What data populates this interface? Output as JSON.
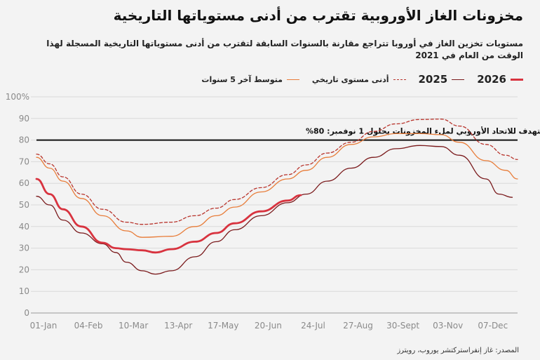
{
  "title": "مخزونات الغاز الأوروبية تقترب من أدنى مستوياتها التاريخية",
  "subtitle": "مستويات تخزين الغاز في أوروبا تتراجع مقارنة بالسنوات السابقة لتقترب من أدنى مستوياتها التاريخية المسجلة لهذا الوقت من العام في 2021",
  "source": "المصدر: غاز إنفراستركتشر يوروب، رويترز",
  "colors": {
    "s2026": "#d8333f",
    "s2025": "#7a1a1c",
    "s5yr": "#e87d3a",
    "sLow": "#b8342c",
    "target": "#111111",
    "grid": "#d9d9d9"
  },
  "legend": [
    {
      "key": "s2026",
      "label": "2026",
      "style": "solid-thick",
      "big": true
    },
    {
      "key": "s2025",
      "label": "2025",
      "style": "solid",
      "big": true
    },
    {
      "key": "sLow",
      "label": "أدنى مستوى تاريخي",
      "style": "dashed",
      "big": false
    },
    {
      "key": "s5yr",
      "label": "متوسط آخر 5 سنوات",
      "style": "solid",
      "big": false
    }
  ],
  "chart_data": {
    "type": "line",
    "ylim": [
      0,
      100
    ],
    "xlim_days": [
      0,
      364
    ],
    "y_ticks": [
      0,
      10,
      20,
      30,
      40,
      50,
      60,
      70,
      80,
      90,
      100
    ],
    "y_tick_labels": [
      "0",
      "10",
      "20",
      "30",
      "40",
      "50",
      "60",
      "70",
      "80",
      "90",
      "100%"
    ],
    "x_ticks": [
      {
        "label": "01-Jan",
        "day": 0
      },
      {
        "label": "04-Feb",
        "day": 34
      },
      {
        "label": "10-Mar",
        "day": 68
      },
      {
        "label": "13-Apr",
        "day": 102
      },
      {
        "label": "17-May",
        "day": 136
      },
      {
        "label": "20-Jun",
        "day": 170
      },
      {
        "label": "24-Jul",
        "day": 204
      },
      {
        "label": "27-Aug",
        "day": 238
      },
      {
        "label": "30-Sept",
        "day": 272
      },
      {
        "label": "03-Nov",
        "day": 306
      },
      {
        "label": "07-Dec",
        "day": 340
      }
    ],
    "target": {
      "value": 80,
      "label": "المستوى المستهدف للاتحاد الأوروبي لملء المخزونات بحلول 1 نوفمبر: 80%"
    },
    "series": [
      {
        "name": "أدنى مستوى تاريخي",
        "key": "sLow",
        "style": "dashed",
        "x": [
          0,
          10,
          20,
          34,
          50,
          68,
          80,
          102,
          120,
          136,
          150,
          170,
          190,
          204,
          220,
          238,
          255,
          272,
          290,
          306,
          320,
          340,
          355,
          364
        ],
        "y": [
          73.5,
          69,
          63,
          55,
          48,
          42,
          41,
          42,
          45,
          48.5,
          52.5,
          58,
          64,
          68.5,
          74,
          79,
          84,
          87.5,
          89.5,
          89.7,
          86.5,
          78,
          73,
          71
        ]
      },
      {
        "name": "متوسط آخر 5 سنوات",
        "key": "s5yr",
        "style": "solid",
        "x": [
          0,
          10,
          20,
          34,
          50,
          68,
          80,
          102,
          120,
          136,
          150,
          170,
          190,
          204,
          220,
          238,
          255,
          272,
          290,
          306,
          320,
          340,
          355,
          364
        ],
        "y": [
          72,
          67,
          61,
          53,
          45,
          38,
          35,
          35.5,
          40,
          45,
          49,
          56,
          62,
          66,
          72,
          78,
          81.5,
          83,
          83,
          82.5,
          79,
          70.5,
          66,
          62
        ]
      },
      {
        "name": "2025",
        "key": "s2025",
        "style": "solid",
        "x": [
          0,
          10,
          20,
          34,
          50,
          60,
          68,
          80,
          90,
          102,
          120,
          136,
          150,
          170,
          190,
          204,
          220,
          238,
          255,
          272,
          290,
          306,
          320,
          340,
          350,
          360
        ],
        "y": [
          54,
          50,
          43,
          37,
          32,
          28,
          23.5,
          19.5,
          18,
          19.5,
          26,
          33,
          38.5,
          45,
          51,
          55,
          61,
          67,
          72,
          76,
          77.5,
          77,
          73,
          62,
          55,
          53.5
        ]
      },
      {
        "name": "2026",
        "key": "s2026",
        "style": "solid-thick",
        "x": [
          0,
          10,
          20,
          34,
          50,
          60,
          68,
          80,
          90,
          102,
          120,
          136,
          150,
          170,
          190,
          200
        ],
        "y": [
          62,
          55,
          48,
          40,
          32.5,
          30,
          29.5,
          29,
          28,
          29.5,
          33,
          37,
          41.5,
          47,
          52,
          54.5
        ]
      }
    ]
  }
}
